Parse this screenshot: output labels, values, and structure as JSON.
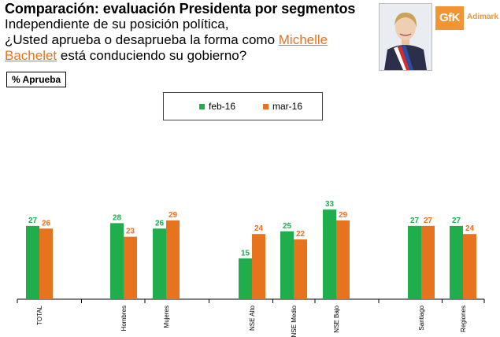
{
  "header": {
    "title": "Comparación: evaluación Presidenta por segmentos",
    "question_part1": "Independiente de su posición política,",
    "question_part2": "¿Usted aprueba o desaprueba la forma como",
    "question_name": "Michelle Bachelet",
    "question_part3": "está conduciendo su gobierno?"
  },
  "tag_label": "% Aprueba",
  "logo": {
    "brand": "GfK",
    "partner": "Adimark"
  },
  "colors": {
    "feb": "#1fae4b",
    "mar": "#e8731f",
    "axis": "#000000"
  },
  "chart_data": {
    "type": "bar",
    "title": "Comparación: evaluación Presidenta por segmentos",
    "ylabel": "% Aprueba",
    "xlabel": "",
    "ylim": [
      0,
      40
    ],
    "legend_position": "top-center",
    "categories": [
      "TOTAL",
      "Hombres",
      "Mujeres",
      "NSE Alto",
      "NSE Medio",
      "NSE Bajo",
      "Santiago",
      "Regiones"
    ],
    "groups": [
      [
        0
      ],
      [
        1,
        2
      ],
      [
        3,
        4,
        5
      ],
      [
        6,
        7
      ]
    ],
    "series": [
      {
        "name": "feb-16",
        "values": [
          27,
          28,
          26,
          15,
          25,
          33,
          27,
          27
        ]
      },
      {
        "name": "mar-16",
        "values": [
          26,
          23,
          29,
          24,
          22,
          29,
          27,
          24
        ]
      }
    ]
  }
}
